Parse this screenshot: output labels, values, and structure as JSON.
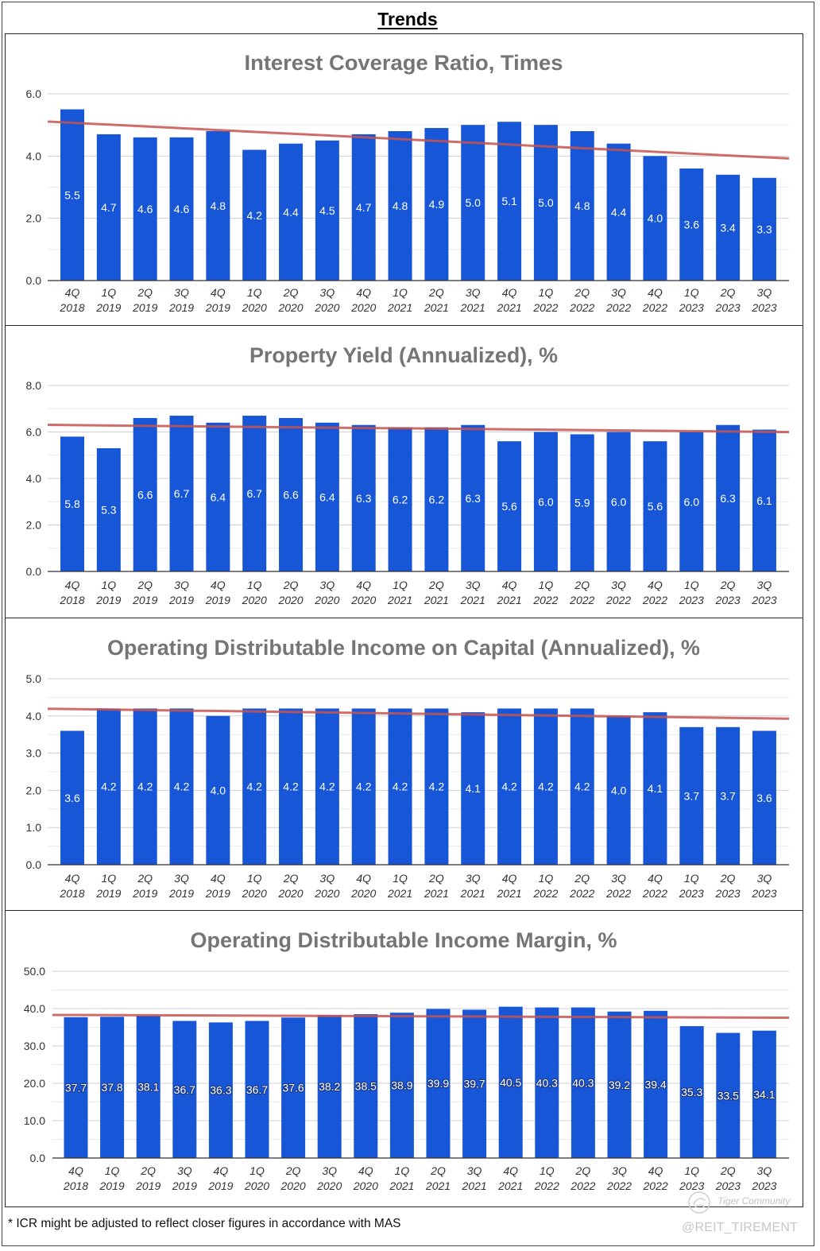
{
  "page": {
    "title": "Trends",
    "footnote": "* ICR might be adjusted to reflect closer figures in accordance with MAS"
  },
  "watermark": {
    "brand": "Tiger Community",
    "handle": "@REIT_TIREMENT",
    "logo_icon": "tiger-community-logo-icon"
  },
  "colors": {
    "bar": "#1756d6",
    "trendline": "#c5544f",
    "title": "#757575",
    "grid": "#d0d0d0",
    "minor_grid": "#ebebeb",
    "axis": "#333333",
    "text": "#333333"
  },
  "chart_data": [
    {
      "type": "bar",
      "title": "Interest Coverage Ratio, Times",
      "categories": [
        "4Q 2018",
        "1Q 2019",
        "2Q 2019",
        "3Q 2019",
        "4Q 2019",
        "1Q 2020",
        "2Q 2020",
        "3Q 2020",
        "4Q 2020",
        "1Q 2021",
        "2Q 2021",
        "3Q 2021",
        "4Q 2021",
        "1Q 2022",
        "2Q 2022",
        "3Q 2022",
        "4Q 2022",
        "1Q 2023",
        "2Q 2023",
        "3Q 2023"
      ],
      "values": [
        5.5,
        4.7,
        4.6,
        4.6,
        4.8,
        4.2,
        4.4,
        4.5,
        4.7,
        4.8,
        4.9,
        5.0,
        5.1,
        5.0,
        4.8,
        4.4,
        4.0,
        3.6,
        3.4,
        3.3
      ],
      "data_labels": [
        "5.5",
        "4.7",
        "4.6",
        "4.6",
        "4.8",
        "4.2",
        "4.4",
        "4.5",
        "4.7",
        "4.8",
        "4.9",
        "5.0",
        "5.1",
        "5.0",
        "4.8",
        "4.4",
        "4.0",
        "3.6",
        "3.4",
        "3.3"
      ],
      "ylim": [
        0,
        6
      ],
      "yticks": [
        0,
        2,
        4,
        6
      ],
      "ytick_labels": [
        "0.0",
        "2.0",
        "4.0",
        "6.0"
      ],
      "grid": true,
      "minor_gridlines": true,
      "trendline": true
    },
    {
      "type": "bar",
      "title": "Property Yield (Annualized), %",
      "categories": [
        "4Q 2018",
        "1Q 2019",
        "2Q 2019",
        "3Q 2019",
        "4Q 2019",
        "1Q 2020",
        "2Q 2020",
        "3Q 2020",
        "4Q 2020",
        "1Q 2021",
        "2Q 2021",
        "3Q 2021",
        "4Q 2021",
        "1Q 2022",
        "2Q 2022",
        "3Q 2022",
        "4Q 2022",
        "1Q 2023",
        "2Q 2023",
        "3Q 2023"
      ],
      "values": [
        5.8,
        5.3,
        6.6,
        6.7,
        6.4,
        6.7,
        6.6,
        6.4,
        6.3,
        6.2,
        6.2,
        6.3,
        5.6,
        6.0,
        5.9,
        6.0,
        5.6,
        6.0,
        6.3,
        6.1
      ],
      "data_labels": [
        "5.8",
        "5.3",
        "6.6",
        "6.7",
        "6.4",
        "6.7",
        "6.6",
        "6.4",
        "6.3",
        "6.2",
        "6.2",
        "6.3",
        "5.6",
        "6.0",
        "5.9",
        "6.0",
        "5.6",
        "6.0",
        "6.3",
        "6.1"
      ],
      "ylim": [
        0,
        8
      ],
      "yticks": [
        0,
        2,
        4,
        6,
        8
      ],
      "ytick_labels": [
        "0.0",
        "2.0",
        "4.0",
        "6.0",
        "8.0"
      ],
      "grid": true,
      "minor_gridlines": true,
      "trendline": true
    },
    {
      "type": "bar",
      "title": "Operating Distributable Income on Capital (Annualized), %",
      "categories": [
        "4Q 2018",
        "1Q 2019",
        "2Q 2019",
        "3Q 2019",
        "4Q 2019",
        "1Q 2020",
        "2Q 2020",
        "3Q 2020",
        "4Q 2020",
        "1Q 2021",
        "2Q 2021",
        "3Q 2021",
        "4Q 2021",
        "1Q 2022",
        "2Q 2022",
        "3Q 2022",
        "4Q 2022",
        "1Q 2023",
        "2Q 2023",
        "3Q 2023"
      ],
      "values": [
        3.6,
        4.2,
        4.2,
        4.2,
        4.0,
        4.2,
        4.2,
        4.2,
        4.2,
        4.2,
        4.2,
        4.1,
        4.2,
        4.2,
        4.2,
        4.0,
        4.1,
        3.7,
        3.7,
        3.6
      ],
      "data_labels": [
        "3.6",
        "4.2",
        "4.2",
        "4.2",
        "4.0",
        "4.2",
        "4.2",
        "4.2",
        "4.2",
        "4.2",
        "4.2",
        "4.1",
        "4.2",
        "4.2",
        "4.2",
        "4.0",
        "4.1",
        "3.7",
        "3.7",
        "3.6"
      ],
      "ylim": [
        0,
        5
      ],
      "yticks": [
        0,
        1,
        2,
        3,
        4,
        5
      ],
      "ytick_labels": [
        "0.0",
        "1.0",
        "2.0",
        "3.0",
        "4.0",
        "5.0"
      ],
      "grid": true,
      "minor_gridlines": true,
      "trendline": true
    },
    {
      "type": "bar",
      "title": "Operating Distributable Income Margin, %",
      "categories": [
        "4Q 2018",
        "1Q 2019",
        "2Q 2019",
        "3Q 2019",
        "4Q 2019",
        "1Q 2020",
        "2Q 2020",
        "3Q 2020",
        "4Q 2020",
        "1Q 2021",
        "2Q 2021",
        "3Q 2021",
        "4Q 2021",
        "1Q 2022",
        "2Q 2022",
        "3Q 2022",
        "4Q 2022",
        "1Q 2023",
        "2Q 2023",
        "3Q 2023"
      ],
      "values": [
        37.7,
        37.8,
        38.1,
        36.7,
        36.3,
        36.7,
        37.6,
        38.2,
        38.5,
        38.9,
        39.9,
        39.7,
        40.5,
        40.3,
        40.3,
        39.2,
        39.4,
        35.3,
        33.5,
        34.1
      ],
      "data_labels": [
        "37.7",
        "37.8",
        "38.1",
        "36.7",
        "36.3",
        "36.7",
        "37.6",
        "38.2",
        "38.5",
        "38.9",
        "39.9",
        "39.7",
        "40.5",
        "40.3",
        "40.3",
        "39.2",
        "39.4",
        "35.3",
        "33.5",
        "34.1"
      ],
      "ylim": [
        0,
        50
      ],
      "yticks": [
        0,
        10,
        20,
        30,
        40,
        50
      ],
      "ytick_labels": [
        "0.0",
        "10.0",
        "20.0",
        "30.0",
        "40.0",
        "50.0"
      ],
      "grid": true,
      "minor_gridlines": true,
      "trendline": true
    }
  ]
}
